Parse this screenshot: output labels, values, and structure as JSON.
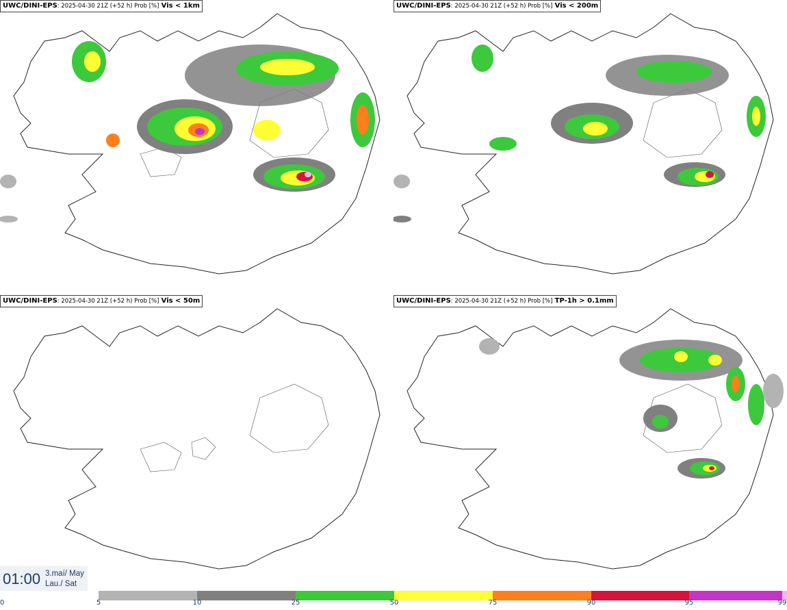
{
  "panels": [
    {
      "model": "UWC/DINI-EPS",
      "run": ": 2025-04-30 21Z (+52 h) Prob [%]",
      "field": "Vis < 1km"
    },
    {
      "model": "UWC/DINI-EPS",
      "run": ": 2025-04-30 21Z (+52 h) Prob [%]",
      "field": "Vis < 200m"
    },
    {
      "model": "UWC/DINI-EPS",
      "run": ": 2025-04-30 21Z (+52 h) Prob [%]",
      "field": "Vis < 50m"
    },
    {
      "model": "UWC/DINI-EPS",
      "run": ": 2025-04-30 21Z (+52 h) Prob [%]",
      "field": "TP-1h > 0.1mm"
    }
  ],
  "valid_time": {
    "time": "01:00",
    "date": "3.maí/ May",
    "day": "Lau./ Sat"
  },
  "legend": {
    "ticks": [
      "0",
      "5",
      "10",
      "25",
      "50",
      "75",
      "90",
      "95",
      "99"
    ],
    "colors": [
      "#ffffff",
      "#b3b3b3",
      "#808080",
      "#3cc93c",
      "#ffff33",
      "#ff7f1a",
      "#d9123c",
      "#c633c6",
      "#f4b3f4"
    ]
  }
}
